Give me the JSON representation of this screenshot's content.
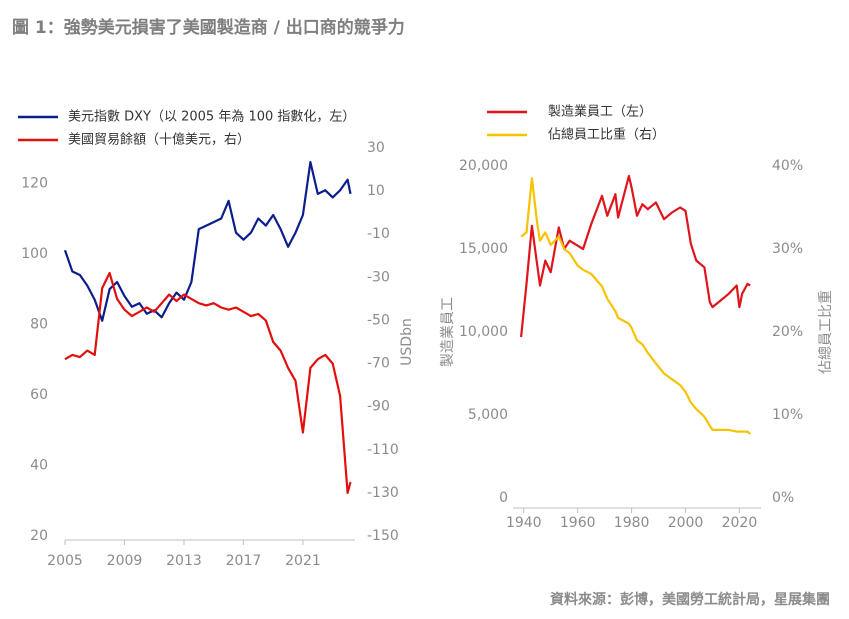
{
  "title": "圖 1：強勢美元損害了美國製造商 / 出口商的競爭力",
  "source": "資料來源：彭博，美國勞工統計局，星展集團",
  "chart_data": [
    {
      "type": "line",
      "x": [
        2005.0,
        2005.5,
        2006.0,
        2006.5,
        2007.0,
        2007.5,
        2008.0,
        2008.5,
        2009.0,
        2009.5,
        2010.0,
        2010.5,
        2011.0,
        2011.5,
        2012.0,
        2012.5,
        2013.0,
        2013.5,
        2014.0,
        2014.5,
        2015.0,
        2015.5,
        2016.0,
        2016.5,
        2017.0,
        2017.5,
        2018.0,
        2018.5,
        2019.0,
        2019.5,
        2020.0,
        2020.5,
        2021.0,
        2021.5,
        2022.0,
        2022.5,
        2023.0,
        2023.5,
        2024.0,
        2024.2
      ],
      "series": [
        {
          "name": "美元指數 DXY（以 2005 年為 100 指數化，左）",
          "color": "#0b1e8c",
          "values": [
            101,
            95,
            94,
            91,
            87,
            81,
            90,
            92,
            88,
            85,
            86,
            83,
            84,
            82,
            86,
            89,
            87,
            92,
            107,
            108,
            109,
            110,
            115,
            106,
            104,
            106,
            110,
            108,
            111,
            107,
            102,
            106,
            111,
            126,
            117,
            118,
            116,
            118,
            121,
            117
          ]
        },
        {
          "name": "美國貿易餘額（十億美元，右）",
          "color": "#e20f0f",
          "axis": "y2",
          "values": [
            -68,
            -66,
            -67,
            -64,
            -66,
            -35,
            -28,
            -40,
            -45,
            -48,
            -46,
            -44,
            -46,
            -42,
            -38,
            -41,
            -38,
            -40,
            -42,
            -43,
            -42,
            -44,
            -45,
            -44,
            -46,
            -48,
            -47,
            -50,
            -60,
            -64,
            -72,
            -78,
            -102,
            -72,
            -68,
            -66,
            -70,
            -85,
            -130,
            -125
          ]
        }
      ],
      "xlim": [
        2005,
        2024.5
      ],
      "xticks": [
        2005,
        2009,
        2013,
        2017,
        2021
      ],
      "ylim": [
        20,
        130
      ],
      "yticks": [
        20,
        40,
        60,
        80,
        100,
        120
      ],
      "y2lim": [
        -150,
        30
      ],
      "y2ticks": [
        -150,
        -130,
        -110,
        -90,
        -70,
        -50,
        -30,
        -10,
        10,
        30
      ],
      "y2_label": "USDbn",
      "legend": "upper left",
      "grid": false
    },
    {
      "type": "line",
      "x": [
        1939,
        1941,
        1943,
        1945,
        1946,
        1948,
        1950,
        1953,
        1955,
        1957,
        1960,
        1962,
        1965,
        1969,
        1971,
        1974,
        1975,
        1979,
        1980,
        1982,
        1984,
        1986,
        1989,
        1992,
        1995,
        1998,
        2000,
        2002,
        2004,
        2007,
        2009,
        2010,
        2013,
        2016,
        2019,
        2020,
        2021,
        2023,
        2024
      ],
      "series": [
        {
          "name": "製造業員工（左）",
          "color": "#e0141b",
          "values": [
            9700,
            12900,
            16400,
            14000,
            12800,
            14300,
            13600,
            16300,
            15000,
            15500,
            15200,
            15000,
            16500,
            18200,
            17000,
            18300,
            16900,
            19400,
            18700,
            17000,
            17700,
            17400,
            17800,
            16800,
            17200,
            17500,
            17300,
            15300,
            14300,
            13900,
            11800,
            11500,
            11900,
            12300,
            12800,
            11500,
            12300,
            12900,
            12800
          ]
        },
        {
          "name": "佔總員工比重（右）",
          "color": "#f6c300",
          "axis": "y2",
          "values": [
            31.5,
            32,
            38.5,
            33,
            31,
            32,
            30.5,
            31.5,
            30,
            29.5,
            28,
            27.5,
            27,
            25.5,
            24,
            22.5,
            21.7,
            21,
            20.5,
            19,
            18.5,
            17.5,
            16.2,
            15,
            14.3,
            13.6,
            12.8,
            11.5,
            10.7,
            9.8,
            8.7,
            8.2,
            8.2,
            8.2,
            8.0,
            8.0,
            8.0,
            8.0,
            7.7
          ]
        }
      ],
      "xlim": [
        1936,
        2028
      ],
      "xticks": [
        1940,
        1960,
        1980,
        2000,
        2020
      ],
      "ylim": [
        0,
        20000
      ],
      "yticks": [
        0,
        {
          "value": 5000,
          "label": "5,000"
        },
        {
          "value": 10000,
          "label": "10,000"
        },
        {
          "value": 15000,
          "label": "15,000"
        },
        {
          "value": 20000,
          "label": "20,000"
        }
      ],
      "y2lim": [
        0,
        40
      ],
      "y2ticks": [
        {
          "value": 0,
          "label": "0%"
        },
        {
          "value": 10,
          "label": "10%"
        },
        {
          "value": 20,
          "label": "20%"
        },
        {
          "value": 30,
          "label": "30%"
        },
        {
          "value": 40,
          "label": "40%"
        }
      ],
      "y_label": "製造業員工",
      "y2_label": "佔總員工比重",
      "legend": "upper center",
      "grid": false
    }
  ]
}
